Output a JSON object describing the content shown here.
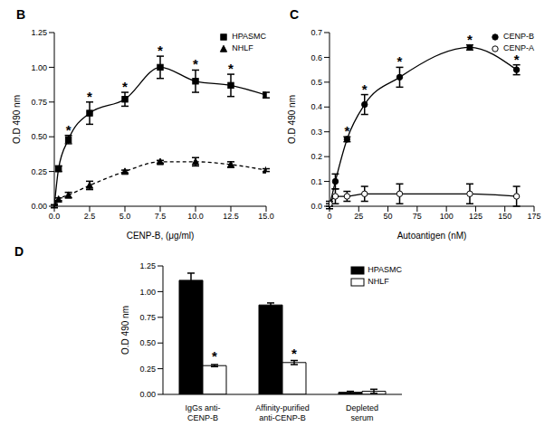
{
  "chart_data": [
    {
      "type": "line",
      "title": "B",
      "x_label": "CENP-B, (μg/ml)",
      "y_label": "O.D 490 nm",
      "x": [
        0,
        0.3,
        1,
        2.5,
        5,
        7.5,
        10,
        12.5,
        15
      ],
      "series": [
        {
          "name": "HPASMC",
          "color": "#000000",
          "marker": "square",
          "line_style": "solid",
          "values": [
            0.0,
            0.27,
            0.48,
            0.67,
            0.77,
            1.0,
            0.9,
            0.87,
            0.8
          ],
          "errors": [
            0.01,
            0.02,
            0.03,
            0.08,
            0.05,
            0.08,
            0.08,
            0.08,
            0.02
          ],
          "marks": [
            null,
            null,
            "*",
            "*",
            "*",
            "*",
            "*",
            "*",
            null
          ]
        },
        {
          "name": "NHLF",
          "color": "#000000",
          "marker": "triangle",
          "line_style": "dashed",
          "values": [
            0.0,
            0.05,
            0.08,
            0.15,
            0.25,
            0.32,
            0.32,
            0.3,
            0.26
          ],
          "errors": [
            0.01,
            0.01,
            0.02,
            0.03,
            0.01,
            0.01,
            0.03,
            0.02,
            0.01
          ],
          "marks": [
            null,
            null,
            null,
            null,
            null,
            null,
            null,
            null,
            null
          ]
        }
      ],
      "xlim": [
        0,
        15
      ],
      "xticks": [
        {
          "value": 0,
          "label": "0.0"
        },
        {
          "value": 2.5,
          "label": "2.5"
        },
        {
          "value": 5,
          "label": "5.0"
        },
        {
          "value": 7.5,
          "label": "7.5"
        },
        {
          "value": 10,
          "label": "10.0"
        },
        {
          "value": 12.5,
          "label": "12.5"
        },
        {
          "value": 15,
          "label": "15.0"
        }
      ],
      "ylim": [
        0,
        1.25
      ],
      "yticks": [
        {
          "value": 0,
          "label": "0.00"
        },
        {
          "value": 0.25,
          "label": "0.25"
        },
        {
          "value": 0.5,
          "label": "0.50"
        },
        {
          "value": 0.75,
          "label": "0.75"
        },
        {
          "value": 1,
          "label": "1.00"
        },
        {
          "value": 1.25,
          "label": "1.25"
        }
      ],
      "legend": "upper right",
      "grid": false
    },
    {
      "type": "line",
      "title": "C",
      "x_label": "Autoantigen (nM)",
      "y_label": "O.D 490 nm",
      "x": [
        0,
        5,
        15,
        30,
        60,
        120,
        160
      ],
      "series": [
        {
          "name": "CENP-B",
          "color": "#000000",
          "marker": "circle",
          "line_style": "solid",
          "values": [
            0.0,
            0.1,
            0.27,
            0.41,
            0.52,
            0.64,
            0.55
          ],
          "errors": [
            0.01,
            0.03,
            0.01,
            0.04,
            0.04,
            0.01,
            0.02
          ],
          "marks": [
            null,
            null,
            "*",
            "*",
            "*",
            "*",
            "*"
          ]
        },
        {
          "name": "CENP-A",
          "color": "#000000",
          "marker": "open circle",
          "line_style": "solid",
          "values": [
            0.01,
            0.04,
            0.04,
            0.05,
            0.05,
            0.05,
            0.04
          ],
          "errors": [
            0.01,
            0.03,
            0.02,
            0.03,
            0.04,
            0.04,
            0.04
          ],
          "marks": [
            null,
            null,
            null,
            null,
            null,
            null,
            null
          ]
        }
      ],
      "xlim": [
        0,
        175
      ],
      "xticks": [
        0,
        25,
        50,
        75,
        100,
        125,
        150,
        175
      ],
      "ylim": [
        0,
        0.7
      ],
      "yticks": [
        {
          "value": 0,
          "label": "0.0"
        },
        0.1,
        0.2,
        0.3,
        0.4,
        0.5,
        0.6,
        0.7
      ],
      "legend": "upper right",
      "grid": false
    },
    {
      "type": "bar",
      "title": "D",
      "y_label": "O.D 490 nm",
      "categories": [
        "IgGs anti-\nCENP-B",
        "Affinity-purified\nanti-CENP-B",
        "Depleted\nserum"
      ],
      "series": [
        {
          "name": "HPASMC",
          "color": "#000000",
          "values": [
            1.11,
            0.87,
            0.02
          ],
          "errors": [
            0.07,
            0.02,
            0.01
          ],
          "marks": [
            null,
            null,
            null
          ]
        },
        {
          "name": "NHLF",
          "color": "#ffffff",
          "values": [
            0.28,
            0.31,
            0.03
          ],
          "errors": [
            0.01,
            0.02,
            0.02
          ],
          "marks": [
            "*",
            "*",
            null
          ]
        }
      ],
      "ylim": [
        0,
        1.25
      ],
      "yticks": [
        {
          "value": 0,
          "label": "0.00"
        },
        {
          "value": 0.25,
          "label": "0.25"
        },
        {
          "value": 0.5,
          "label": "0.50"
        },
        {
          "value": 0.75,
          "label": "0.75"
        },
        {
          "value": 1,
          "label": "1.00"
        },
        {
          "value": 1.25,
          "label": "1.25"
        }
      ],
      "legend": "upper right",
      "grid": false
    }
  ]
}
